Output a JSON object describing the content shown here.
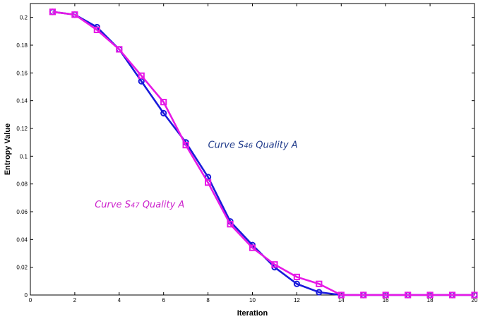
{
  "chart_data": {
    "type": "line",
    "title": "",
    "xlabel": "Iteration",
    "ylabel": "Entropy Value",
    "xlim": [
      0,
      20
    ],
    "ylim": [
      0,
      0.21
    ],
    "xticks": [
      0,
      2,
      4,
      6,
      8,
      10,
      12,
      14,
      16,
      18,
      20
    ],
    "xtick_labels": [
      "0",
      "2",
      "4",
      "6",
      "8",
      "10",
      "12",
      "14",
      "16",
      "18",
      "20"
    ],
    "yticks": [
      0,
      0.02,
      0.04,
      0.06,
      0.08,
      0.1,
      0.12,
      0.14,
      0.16,
      0.18,
      0.2
    ],
    "ytick_labels": [
      "0",
      "0.02",
      "0.04",
      "0.06",
      "0.08",
      "0.1",
      "0.12",
      "0.14",
      "0.16",
      "0.18",
      "0.2"
    ],
    "grid": false,
    "series": [
      {
        "color": "#1a1adb",
        "marker": "circle",
        "x": [
          1,
          2,
          3,
          4,
          5,
          6,
          7,
          8,
          9,
          10,
          11,
          12,
          13,
          14,
          15,
          16,
          17,
          18,
          19,
          20
        ],
        "y": [
          0.204,
          0.202,
          0.193,
          0.177,
          0.154,
          0.131,
          0.11,
          0.085,
          0.053,
          0.036,
          0.02,
          0.008,
          0.002,
          0,
          0,
          0,
          0,
          0,
          0,
          0
        ]
      },
      {
        "color": "#e619e6",
        "marker": "square",
        "x": [
          1,
          2,
          3,
          4,
          5,
          6,
          7,
          8,
          9,
          10,
          11,
          12,
          13,
          14,
          15,
          16,
          17,
          18,
          19,
          20
        ],
        "y": [
          0.204,
          0.202,
          0.191,
          0.177,
          0.158,
          0.139,
          0.108,
          0.081,
          0.051,
          0.034,
          0.022,
          0.013,
          0.008,
          0,
          0,
          0,
          0,
          0,
          0,
          0
        ]
      }
    ],
    "annotations": [
      {
        "prefix": "Curve S",
        "sub": "46",
        "suffix": "  Quality A",
        "x": 8.0,
        "y": 0.106,
        "color": "#1f3a8a"
      },
      {
        "prefix": "Curve S",
        "sub": "47",
        "suffix": "  Quality A",
        "x": 2.9,
        "y": 0.063,
        "color": "#cc22cc"
      }
    ]
  }
}
